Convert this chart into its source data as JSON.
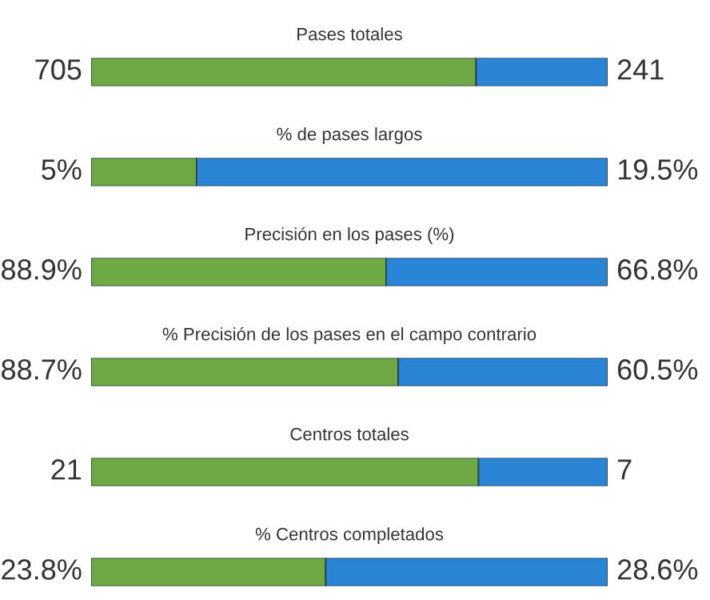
{
  "chart_data": [
    {
      "type": "bar",
      "orientation": "horizontal",
      "stacked": true,
      "title": "Pases totales",
      "categories": [
        null
      ],
      "xlim": [
        0,
        946
      ],
      "series": [
        {
          "color": "#6fa943",
          "values": [
            705
          ],
          "value_labels": [
            "705"
          ]
        },
        {
          "color": "#2a86d4",
          "values": [
            241
          ],
          "value_labels": [
            "241"
          ]
        }
      ]
    },
    {
      "type": "bar",
      "orientation": "horizontal",
      "stacked": true,
      "title": "% de pases largos",
      "categories": [
        null
      ],
      "xlim": [
        0,
        24.5
      ],
      "series": [
        {
          "color": "#6fa943",
          "values": [
            5
          ],
          "value_labels": [
            "5%"
          ]
        },
        {
          "color": "#2a86d4",
          "values": [
            19.5
          ],
          "value_labels": [
            "19.5%"
          ]
        }
      ]
    },
    {
      "type": "bar",
      "orientation": "horizontal",
      "stacked": true,
      "title": "Precisión en los pases (%)",
      "categories": [
        null
      ],
      "xlim": [
        0,
        155.7
      ],
      "series": [
        {
          "color": "#6fa943",
          "values": [
            88.9
          ],
          "value_labels": [
            "88.9%"
          ]
        },
        {
          "color": "#2a86d4",
          "values": [
            66.8
          ],
          "value_labels": [
            "66.8%"
          ]
        }
      ]
    },
    {
      "type": "bar",
      "orientation": "horizontal",
      "stacked": true,
      "title": "% Precisión de los pases en el campo contrario",
      "categories": [
        null
      ],
      "xlim": [
        0,
        149.2
      ],
      "series": [
        {
          "color": "#6fa943",
          "values": [
            88.7
          ],
          "value_labels": [
            "88.7%"
          ]
        },
        {
          "color": "#2a86d4",
          "values": [
            60.5
          ],
          "value_labels": [
            "60.5%"
          ]
        }
      ]
    },
    {
      "type": "bar",
      "orientation": "horizontal",
      "stacked": true,
      "title": "Centros totales",
      "categories": [
        null
      ],
      "xlim": [
        0,
        28
      ],
      "series": [
        {
          "color": "#6fa943",
          "values": [
            21
          ],
          "value_labels": [
            "21"
          ]
        },
        {
          "color": "#2a86d4",
          "values": [
            7
          ],
          "value_labels": [
            "7"
          ]
        }
      ]
    },
    {
      "type": "bar",
      "orientation": "horizontal",
      "stacked": true,
      "title": "% Centros completados",
      "categories": [
        null
      ],
      "xlim": [
        0,
        52.4
      ],
      "series": [
        {
          "color": "#6fa943",
          "values": [
            23.8
          ],
          "value_labels": [
            "23.8%"
          ]
        },
        {
          "color": "#2a86d4",
          "values": [
            28.6
          ],
          "value_labels": [
            "28.6%"
          ]
        }
      ]
    }
  ]
}
